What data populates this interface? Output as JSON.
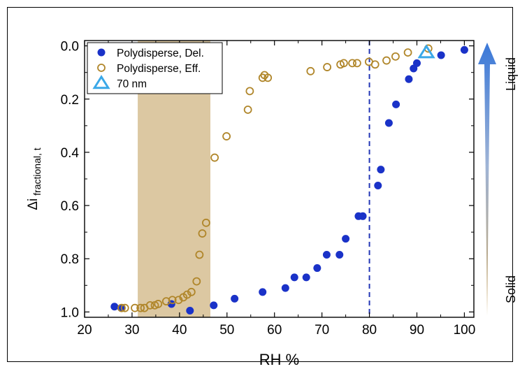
{
  "chart_data": {
    "type": "scatter",
    "xlabel": "RH %",
    "ylabel": {
      "main": "Δi",
      "sub": "fractional, t"
    },
    "xlim": [
      20,
      102
    ],
    "ylim": [
      1.02,
      -0.02
    ],
    "y_inverted": true,
    "x_ticks": [
      20,
      30,
      40,
      50,
      60,
      70,
      80,
      90,
      100
    ],
    "y_ticks": [
      "0.0",
      "0.2",
      "0.4",
      "0.6",
      "0.8",
      "1.0"
    ],
    "y_tick_values": [
      0.0,
      0.2,
      0.4,
      0.6,
      0.8,
      1.0
    ],
    "legend_position": "top-left",
    "shaded_region": {
      "x": [
        31.2,
        46.5
      ],
      "color": "#dcc8a2"
    },
    "vertical_line": {
      "x": 80,
      "style": "dashed",
      "color": "#2236b5"
    },
    "gradient_arrow": {
      "top_label": "Liquid",
      "bottom_label": "Solid",
      "top_color": "#3a78d8",
      "bottom_color": "#c9a35e"
    },
    "series": [
      {
        "name": "Polydisperse, Del.",
        "marker": "filled-circle",
        "color": "#1a32c8",
        "points": [
          [
            26.3,
            0.98
          ],
          [
            27.7,
            0.985
          ],
          [
            38.3,
            0.97
          ],
          [
            42.2,
            0.995
          ],
          [
            47.2,
            0.975
          ],
          [
            51.6,
            0.95
          ],
          [
            57.5,
            0.925
          ],
          [
            62.3,
            0.91
          ],
          [
            64.2,
            0.87
          ],
          [
            66.7,
            0.87
          ],
          [
            69.0,
            0.835
          ],
          [
            71.0,
            0.785
          ],
          [
            73.7,
            0.785
          ],
          [
            75.0,
            0.725
          ],
          [
            77.7,
            0.64
          ],
          [
            78.6,
            0.64
          ],
          [
            81.8,
            0.525
          ],
          [
            82.4,
            0.465
          ],
          [
            84.1,
            0.29
          ],
          [
            85.6,
            0.22
          ],
          [
            88.3,
            0.125
          ],
          [
            89.3,
            0.085
          ],
          [
            90.0,
            0.065
          ],
          [
            95.1,
            0.035
          ],
          [
            100.0,
            0.015
          ]
        ]
      },
      {
        "name": "Polydisperse, Eff.",
        "marker": "open-circle",
        "color": "#b0862a",
        "points": [
          [
            27.8,
            0.985
          ],
          [
            28.5,
            0.985
          ],
          [
            30.6,
            0.985
          ],
          [
            31.8,
            0.985
          ],
          [
            32.6,
            0.985
          ],
          [
            33.8,
            0.975
          ],
          [
            34.8,
            0.975
          ],
          [
            35.5,
            0.97
          ],
          [
            37.2,
            0.96
          ],
          [
            38.5,
            0.955
          ],
          [
            39.8,
            0.955
          ],
          [
            40.8,
            0.945
          ],
          [
            41.6,
            0.935
          ],
          [
            42.5,
            0.925
          ],
          [
            43.6,
            0.885
          ],
          [
            44.2,
            0.785
          ],
          [
            44.8,
            0.705
          ],
          [
            45.6,
            0.665
          ],
          [
            47.4,
            0.42
          ],
          [
            49.9,
            0.34
          ],
          [
            54.4,
            0.24
          ],
          [
            54.8,
            0.17
          ],
          [
            57.5,
            0.12
          ],
          [
            57.9,
            0.11
          ],
          [
            58.6,
            0.12
          ],
          [
            67.6,
            0.095
          ],
          [
            71.1,
            0.08
          ],
          [
            73.9,
            0.07
          ],
          [
            74.6,
            0.065
          ],
          [
            76.4,
            0.065
          ],
          [
            77.4,
            0.065
          ],
          [
            79.9,
            0.06
          ],
          [
            81.2,
            0.07
          ],
          [
            83.6,
            0.055
          ],
          [
            85.5,
            0.04
          ],
          [
            88.1,
            0.025
          ],
          [
            92.4,
            0.01
          ]
        ]
      },
      {
        "name": "70 nm",
        "marker": "open-triangle",
        "color": "#3aa8e8",
        "points": [
          [
            92.0,
            0.025
          ]
        ]
      }
    ]
  }
}
